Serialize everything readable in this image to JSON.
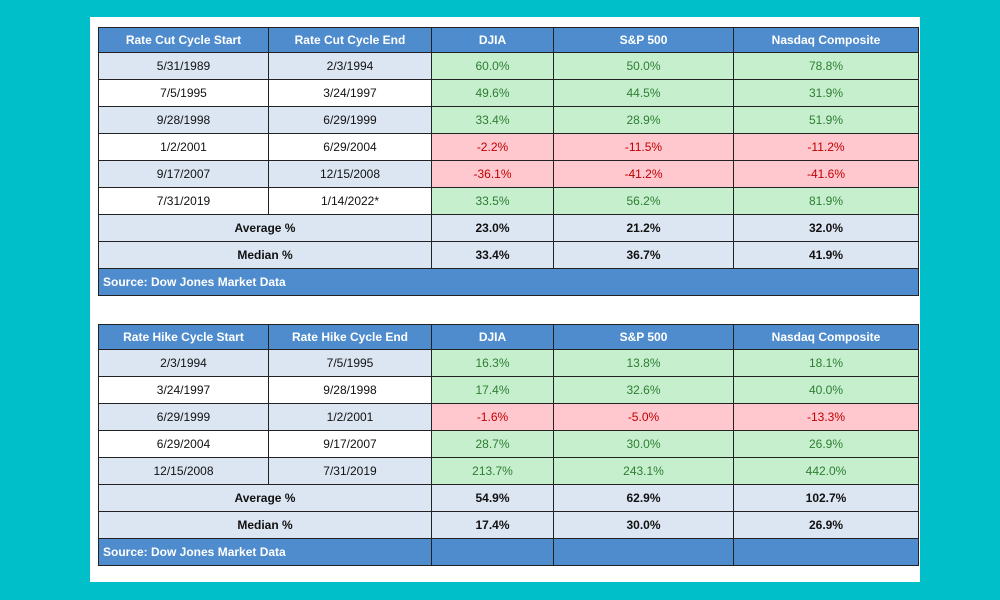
{
  "cut_table": {
    "headers": [
      "Rate Cut Cycle Start",
      "Rate Cut Cycle End",
      "DJIA",
      "S&P 500",
      "Nasdaq Composite"
    ],
    "rows": [
      {
        "start": "5/31/1989",
        "end": "2/3/1994",
        "djia": "60.0%",
        "sp500": "50.0%",
        "nasdaq": "78.8%"
      },
      {
        "start": "7/5/1995",
        "end": "3/24/1997",
        "djia": "49.6%",
        "sp500": "44.5%",
        "nasdaq": "31.9%"
      },
      {
        "start": "9/28/1998",
        "end": "6/29/1999",
        "djia": "33.4%",
        "sp500": "28.9%",
        "nasdaq": "51.9%"
      },
      {
        "start": "1/2/2001",
        "end": "6/29/2004",
        "djia": "-2.2%",
        "sp500": "-11.5%",
        "nasdaq": "-11.2%"
      },
      {
        "start": "9/17/2007",
        "end": "12/15/2008",
        "djia": "-36.1%",
        "sp500": "-41.2%",
        "nasdaq": "-41.6%"
      },
      {
        "start": "7/31/2019",
        "end": "1/14/2022*",
        "djia": "33.5%",
        "sp500": "56.2%",
        "nasdaq": "81.9%"
      }
    ],
    "average": {
      "label": "Average %",
      "djia": "23.0%",
      "sp500": "21.2%",
      "nasdaq": "32.0%"
    },
    "median": {
      "label": "Median %",
      "djia": "33.4%",
      "sp500": "36.7%",
      "nasdaq": "41.9%"
    },
    "source": "Source: Dow Jones Market Data"
  },
  "hike_table": {
    "headers": [
      "Rate Hike Cycle Start",
      "Rate Hike Cycle End",
      "DJIA",
      "S&P 500",
      "Nasdaq Composite"
    ],
    "rows": [
      {
        "start": "2/3/1994",
        "end": "7/5/1995",
        "djia": "16.3%",
        "sp500": "13.8%",
        "nasdaq": "18.1%"
      },
      {
        "start": "3/24/1997",
        "end": "9/28/1998",
        "djia": "17.4%",
        "sp500": "32.6%",
        "nasdaq": "40.0%"
      },
      {
        "start": "6/29/1999",
        "end": "1/2/2001",
        "djia": "-1.6%",
        "sp500": "-5.0%",
        "nasdaq": "-13.3%"
      },
      {
        "start": "6/29/2004",
        "end": "9/17/2007",
        "djia": "28.7%",
        "sp500": "30.0%",
        "nasdaq": "26.9%"
      },
      {
        "start": "12/15/2008",
        "end": "7/31/2019",
        "djia": "213.7%",
        "sp500": "243.1%",
        "nasdaq": "442.0%"
      }
    ],
    "average": {
      "label": "Average %",
      "djia": "54.9%",
      "sp500": "62.9%",
      "nasdaq": "102.7%"
    },
    "median": {
      "label": "Median %",
      "djia": "17.4%",
      "sp500": "30.0%",
      "nasdaq": "26.9%"
    },
    "source": "Source: Dow Jones Market Data"
  },
  "colors": {
    "background": "#00bfc8",
    "header_blue": "#4f8ccd",
    "positive_fill": "#c6efce",
    "positive_text": "#2e7d32",
    "negative_fill": "#ffc7ce",
    "negative_text": "#c00000",
    "band_light": "#dce6f2"
  }
}
